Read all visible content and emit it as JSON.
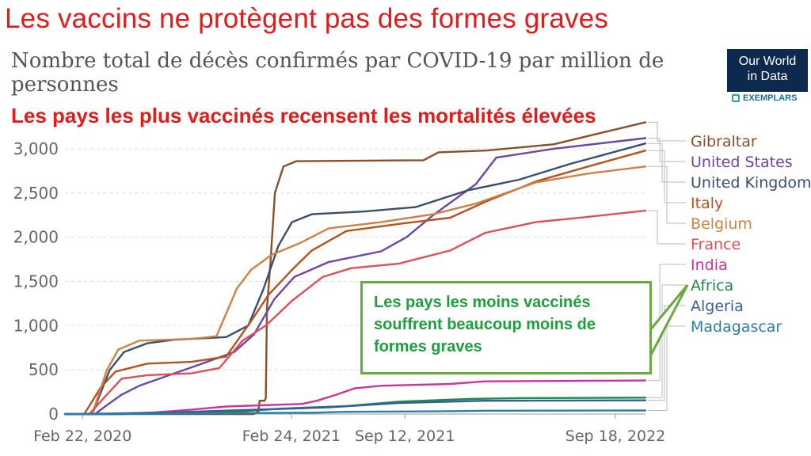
{
  "headline": "Les vaccins ne protègent pas des formes graves",
  "claim": "Les pays les plus vaccinés recensent les mortalités élevées",
  "callout_text": "Les pays les moins vaccinés souffrent beaucoup moins de formes graves",
  "logo": {
    "line1": "Our World",
    "line2": "in Data",
    "sub": "EXEMPLARS"
  },
  "chart_data": {
    "type": "line",
    "title": "Nombre total de décès confirmés par COVID-19 par million de personnes",
    "ylim": [
      0,
      3250
    ],
    "yticks": [
      0,
      500,
      1000,
      1500,
      2000,
      2500,
      3000
    ],
    "ytick_labels": [
      "0",
      "500",
      "1,000",
      "1,500",
      "2,000",
      "2,500",
      "3,000"
    ],
    "xlim": [
      "2020-01-22",
      "2022-11-10"
    ],
    "xticks": [
      "2020-02-22",
      "2021-02-24",
      "2021-09-12",
      "2022-09-18"
    ],
    "xtick_labels": [
      "Feb 22, 2020",
      "Feb 24, 2021",
      "Sep 12, 2021",
      "Sep 18, 2022"
    ],
    "grid": true,
    "legend": "right",
    "series": [
      {
        "name": "Gibraltar",
        "color": "#8a4f2a",
        "points": [
          [
            "2020-01-22",
            0
          ],
          [
            "2020-10-01",
            0
          ],
          [
            "2020-11-15",
            0
          ],
          [
            "2020-12-20",
            0
          ],
          [
            "2020-12-28",
            30
          ],
          [
            "2020-12-30",
            150
          ],
          [
            "2021-01-08",
            150
          ],
          [
            "2021-01-10",
            180
          ],
          [
            "2021-01-12",
            1200
          ],
          [
            "2021-01-18",
            1700
          ],
          [
            "2021-01-26",
            2500
          ],
          [
            "2021-02-10",
            2800
          ],
          [
            "2021-03-05",
            2860
          ],
          [
            "2021-10-15",
            2870
          ],
          [
            "2021-11-10",
            2960
          ],
          [
            "2022-02-01",
            2980
          ],
          [
            "2022-06-01",
            3050
          ],
          [
            "2022-11-10",
            3300
          ]
        ]
      },
      {
        "name": "United States",
        "color": "#6b46a8",
        "points": [
          [
            "2020-01-22",
            0
          ],
          [
            "2020-03-15",
            0
          ],
          [
            "2020-04-05",
            100
          ],
          [
            "2020-05-01",
            220
          ],
          [
            "2020-06-01",
            320
          ],
          [
            "2020-07-15",
            420
          ],
          [
            "2020-09-15",
            560
          ],
          [
            "2020-11-15",
            700
          ],
          [
            "2020-12-20",
            900
          ],
          [
            "2021-01-25",
            1300
          ],
          [
            "2021-03-01",
            1550
          ],
          [
            "2021-05-01",
            1720
          ],
          [
            "2021-08-01",
            1840
          ],
          [
            "2021-09-15",
            2000
          ],
          [
            "2021-11-01",
            2250
          ],
          [
            "2022-01-15",
            2600
          ],
          [
            "2022-02-20",
            2900
          ],
          [
            "2022-06-01",
            3000
          ],
          [
            "2022-11-10",
            3120
          ]
        ]
      },
      {
        "name": "United Kingdom",
        "color": "#3a4e6e",
        "points": [
          [
            "2020-01-22",
            0
          ],
          [
            "2020-03-10",
            0
          ],
          [
            "2020-04-10",
            500
          ],
          [
            "2020-05-05",
            700
          ],
          [
            "2020-06-15",
            800
          ],
          [
            "2020-08-01",
            840
          ],
          [
            "2020-11-01",
            870
          ],
          [
            "2020-12-10",
            1000
          ],
          [
            "2021-01-05",
            1400
          ],
          [
            "2021-02-01",
            1900
          ],
          [
            "2021-02-25",
            2170
          ],
          [
            "2021-04-01",
            2260
          ],
          [
            "2021-07-01",
            2290
          ],
          [
            "2021-10-01",
            2340
          ],
          [
            "2022-01-01",
            2530
          ],
          [
            "2022-04-01",
            2650
          ],
          [
            "2022-07-01",
            2830
          ],
          [
            "2022-11-10",
            3060
          ]
        ]
      },
      {
        "name": "Italy",
        "color": "#b5521e",
        "points": [
          [
            "2020-01-22",
            0
          ],
          [
            "2020-02-25",
            0
          ],
          [
            "2020-03-25",
            300
          ],
          [
            "2020-04-20",
            480
          ],
          [
            "2020-06-15",
            570
          ],
          [
            "2020-09-01",
            590
          ],
          [
            "2020-11-01",
            650
          ],
          [
            "2020-12-15",
            1050
          ],
          [
            "2021-01-15",
            1350
          ],
          [
            "2021-02-25",
            1630
          ],
          [
            "2021-04-01",
            1850
          ],
          [
            "2021-06-01",
            2070
          ],
          [
            "2021-09-01",
            2150
          ],
          [
            "2021-12-01",
            2220
          ],
          [
            "2022-02-01",
            2400
          ],
          [
            "2022-05-01",
            2630
          ],
          [
            "2022-08-01",
            2800
          ],
          [
            "2022-11-10",
            2980
          ]
        ]
      },
      {
        "name": "Belgium",
        "color": "#cf8145",
        "points": [
          [
            "2020-01-22",
            0
          ],
          [
            "2020-03-10",
            0
          ],
          [
            "2020-04-05",
            500
          ],
          [
            "2020-04-25",
            730
          ],
          [
            "2020-06-01",
            830
          ],
          [
            "2020-09-01",
            850
          ],
          [
            "2020-10-15",
            880
          ],
          [
            "2020-11-20",
            1420
          ],
          [
            "2020-12-15",
            1630
          ],
          [
            "2021-01-20",
            1800
          ],
          [
            "2021-03-10",
            1930
          ],
          [
            "2021-05-01",
            2100
          ],
          [
            "2021-08-01",
            2170
          ],
          [
            "2021-11-01",
            2260
          ],
          [
            "2022-01-15",
            2380
          ],
          [
            "2022-05-01",
            2620
          ],
          [
            "2022-08-01",
            2720
          ],
          [
            "2022-11-10",
            2800
          ]
        ]
      },
      {
        "name": "France",
        "color": "#e04e5a",
        "points": [
          [
            "2020-01-22",
            0
          ],
          [
            "2020-03-05",
            0
          ],
          [
            "2020-04-05",
            220
          ],
          [
            "2020-05-01",
            400
          ],
          [
            "2020-06-15",
            440
          ],
          [
            "2020-09-01",
            460
          ],
          [
            "2020-10-20",
            520
          ],
          [
            "2020-11-30",
            830
          ],
          [
            "2021-01-10",
            1000
          ],
          [
            "2021-02-25",
            1280
          ],
          [
            "2021-04-20",
            1550
          ],
          [
            "2021-06-10",
            1650
          ],
          [
            "2021-09-01",
            1700
          ],
          [
            "2021-12-01",
            1850
          ],
          [
            "2022-02-01",
            2050
          ],
          [
            "2022-05-01",
            2170
          ],
          [
            "2022-08-01",
            2230
          ],
          [
            "2022-11-10",
            2300
          ]
        ]
      },
      {
        "name": "India",
        "color": "#c9359e",
        "points": [
          [
            "2020-01-22",
            0
          ],
          [
            "2020-05-01",
            0
          ],
          [
            "2020-07-01",
            20
          ],
          [
            "2020-09-01",
            50
          ],
          [
            "2020-11-01",
            85
          ],
          [
            "2021-03-15",
            115
          ],
          [
            "2021-04-10",
            150
          ],
          [
            "2021-05-15",
            220
          ],
          [
            "2021-06-15",
            290
          ],
          [
            "2021-08-01",
            320
          ],
          [
            "2021-12-01",
            340
          ],
          [
            "2022-02-01",
            370
          ],
          [
            "2022-11-10",
            380
          ]
        ]
      },
      {
        "name": "Africa",
        "color": "#1f8a4e",
        "points": [
          [
            "2020-01-22",
            0
          ],
          [
            "2020-05-01",
            0
          ],
          [
            "2020-08-01",
            15
          ],
          [
            "2020-12-01",
            30
          ],
          [
            "2021-02-01",
            60
          ],
          [
            "2021-06-01",
            90
          ],
          [
            "2021-09-01",
            140
          ],
          [
            "2022-01-01",
            170
          ],
          [
            "2022-04-01",
            180
          ],
          [
            "2022-11-10",
            185
          ]
        ]
      },
      {
        "name": "Algeria",
        "color": "#345f99",
        "points": [
          [
            "2020-01-22",
            0
          ],
          [
            "2020-04-01",
            5
          ],
          [
            "2020-08-01",
            20
          ],
          [
            "2020-12-01",
            45
          ],
          [
            "2021-05-01",
            75
          ],
          [
            "2021-09-01",
            125
          ],
          [
            "2022-02-01",
            150
          ],
          [
            "2022-11-10",
            155
          ]
        ]
      },
      {
        "name": "Madagascar",
        "color": "#2a7fa8",
        "points": [
          [
            "2020-01-22",
            0
          ],
          [
            "2020-07-01",
            3
          ],
          [
            "2020-09-01",
            8
          ],
          [
            "2021-04-01",
            15
          ],
          [
            "2021-06-01",
            25
          ],
          [
            "2021-12-01",
            32
          ],
          [
            "2022-02-01",
            38
          ],
          [
            "2022-11-10",
            40
          ]
        ]
      }
    ]
  }
}
